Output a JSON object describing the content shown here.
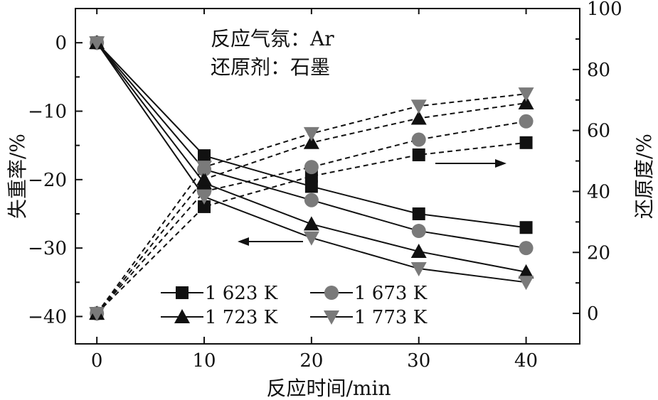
{
  "chart_data": {
    "type": "line",
    "annotations": [
      "反应气氛：Ar",
      "还原剂：石墨"
    ],
    "xlabel": "反应时间/min",
    "ylabel_left": "失重率/%",
    "ylabel_right": "还原度/%",
    "x_ticks": [
      0,
      10,
      20,
      30,
      40
    ],
    "y_left_ticks": [
      0,
      -10,
      -20,
      -30,
      -40
    ],
    "y_right_ticks": [
      0,
      20,
      40,
      60,
      80,
      100
    ],
    "xlim": [
      -2,
      45
    ],
    "ylim_left": [
      -44,
      5
    ],
    "ylim_right": [
      -10,
      100
    ],
    "grid": false,
    "legend_placement": "bottom-center",
    "x": [
      0,
      10,
      20,
      30,
      40
    ],
    "series": [
      {
        "name": "1 623 K",
        "marker": "square",
        "color": "#111111",
        "weight_loss": [
          0,
          -16.5,
          -21,
          -25,
          -27
        ],
        "reduction_degree": [
          0,
          35,
          45,
          52,
          56
        ]
      },
      {
        "name": "1 673 K",
        "marker": "circle",
        "color": "#7a7a7a",
        "weight_loss": [
          0,
          -18.5,
          -23,
          -27.5,
          -30
        ],
        "reduction_degree": [
          0,
          40,
          48,
          57,
          63
        ]
      },
      {
        "name": "1 723 K",
        "marker": "triangle-up",
        "color": "#111111",
        "weight_loss": [
          0,
          -20.5,
          -26.5,
          -30.5,
          -33.5
        ],
        "reduction_degree": [
          0,
          44,
          56,
          64,
          69
        ]
      },
      {
        "name": "1 773 K",
        "marker": "triangle-down",
        "color": "#7a7a7a",
        "weight_loss": [
          0,
          -22.5,
          -28.5,
          -33,
          -35
        ],
        "reduction_degree": [
          0,
          48,
          59,
          68,
          72
        ]
      }
    ]
  }
}
